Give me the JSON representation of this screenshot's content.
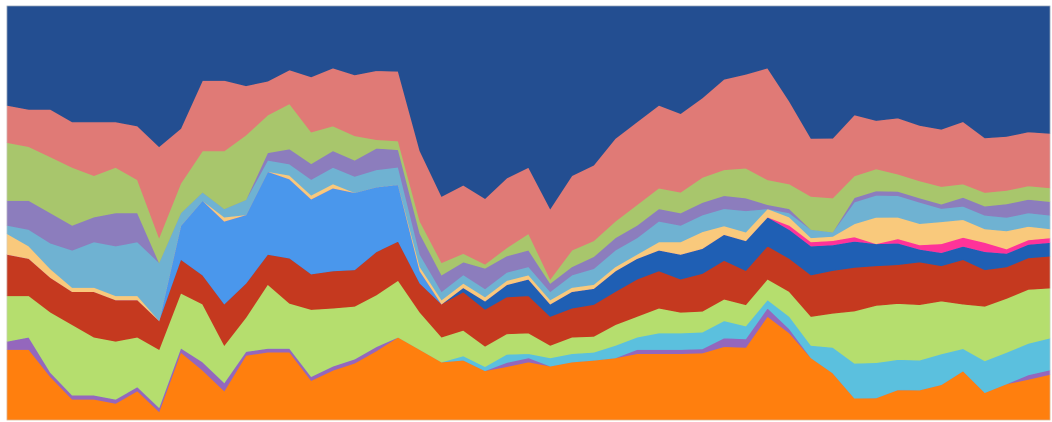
{
  "chart_data": {
    "type": "area",
    "stacked": true,
    "normalized": true,
    "ylim": [
      0,
      1
    ],
    "grid": false,
    "legend": "none",
    "n_points": 49,
    "series": [
      {
        "color": "#ff7f0e",
        "values": [
          0.17,
          0.17,
          0.1,
          0.05,
          0.05,
          0.04,
          0.07,
          0.02,
          0.16,
          0.12,
          0.07,
          0.17,
          0.18,
          0.18,
          0.1,
          0.12,
          0.14,
          0.16,
          0.19,
          0.17,
          0.14,
          0.14,
          0.12,
          0.13,
          0.14,
          0.13,
          0.14,
          0.15,
          0.15,
          0.16,
          0.16,
          0.16,
          0.16,
          0.17,
          0.17,
          0.25,
          0.21,
          0.15,
          0.11,
          0.05,
          0.05,
          0.07,
          0.07,
          0.08,
          0.11,
          0.06,
          0.08,
          0.09,
          0.1
        ]
      },
      {
        "color": "#9467bd",
        "values": [
          0.02,
          0.03,
          0.01,
          0.01,
          0.01,
          0.01,
          0.01,
          0.01,
          0.01,
          0.02,
          0.02,
          0.01,
          0.01,
          0.01,
          0.01,
          0.01,
          0.01,
          0.01,
          0.0,
          0.0,
          0.0,
          0.0,
          0.0,
          0.01,
          0.01,
          0.0,
          0.0,
          0.0,
          0.0,
          0.01,
          0.01,
          0.01,
          0.01,
          0.02,
          0.02,
          0.02,
          0.01,
          0.0,
          0.0,
          0.0,
          0.0,
          0.0,
          0.0,
          0.0,
          0.0,
          0.0,
          0.0,
          0.01,
          0.01
        ]
      },
      {
        "color": "#5bc0de",
        "values": [
          0.0,
          0.0,
          0.0,
          0.0,
          0.0,
          0.0,
          0.0,
          0.0,
          0.0,
          0.0,
          0.0,
          0.0,
          0.0,
          0.0,
          0.0,
          0.0,
          0.0,
          0.0,
          0.0,
          0.0,
          0.0,
          0.01,
          0.01,
          0.02,
          0.01,
          0.02,
          0.02,
          0.02,
          0.03,
          0.03,
          0.04,
          0.04,
          0.04,
          0.04,
          0.03,
          0.02,
          0.03,
          0.03,
          0.06,
          0.08,
          0.08,
          0.07,
          0.07,
          0.07,
          0.05,
          0.07,
          0.07,
          0.07,
          0.07
        ]
      },
      {
        "color": "#b5de6e",
        "values": [
          0.11,
          0.1,
          0.14,
          0.17,
          0.14,
          0.14,
          0.12,
          0.14,
          0.13,
          0.14,
          0.09,
          0.09,
          0.17,
          0.12,
          0.17,
          0.14,
          0.13,
          0.12,
          0.13,
          0.09,
          0.06,
          0.06,
          0.05,
          0.05,
          0.05,
          0.03,
          0.04,
          0.04,
          0.05,
          0.05,
          0.06,
          0.05,
          0.05,
          0.05,
          0.05,
          0.05,
          0.06,
          0.07,
          0.08,
          0.12,
          0.13,
          0.13,
          0.13,
          0.12,
          0.1,
          0.12,
          0.12,
          0.12,
          0.11
        ]
      },
      {
        "color": "#c5391f",
        "values": [
          0.1,
          0.09,
          0.08,
          0.08,
          0.11,
          0.1,
          0.09,
          0.07,
          0.08,
          0.07,
          0.1,
          0.09,
          0.08,
          0.12,
          0.09,
          0.09,
          0.09,
          0.1,
          0.09,
          0.07,
          0.08,
          0.09,
          0.09,
          0.09,
          0.09,
          0.07,
          0.07,
          0.08,
          0.08,
          0.09,
          0.09,
          0.08,
          0.09,
          0.09,
          0.08,
          0.08,
          0.08,
          0.1,
          0.1,
          0.1,
          0.09,
          0.09,
          0.1,
          0.08,
          0.1,
          0.08,
          0.07,
          0.07,
          0.07
        ]
      },
      {
        "color": "#1f5fb4",
        "values": [
          0.0,
          0.0,
          0.0,
          0.0,
          0.0,
          0.0,
          0.0,
          0.0,
          0.0,
          0.0,
          0.0,
          0.0,
          0.0,
          0.0,
          0.0,
          0.0,
          0.0,
          0.0,
          0.0,
          0.0,
          0.0,
          0.01,
          0.02,
          0.03,
          0.04,
          0.03,
          0.04,
          0.04,
          0.05,
          0.05,
          0.05,
          0.06,
          0.06,
          0.06,
          0.07,
          0.07,
          0.07,
          0.07,
          0.06,
          0.06,
          0.05,
          0.05,
          0.03,
          0.03,
          0.03,
          0.04,
          0.03,
          0.03,
          0.03
        ]
      },
      {
        "color": "#4a97ec",
        "values": [
          0.0,
          0.0,
          0.0,
          0.0,
          0.0,
          0.0,
          0.0,
          0.0,
          0.08,
          0.18,
          0.2,
          0.18,
          0.22,
          0.21,
          0.19,
          0.2,
          0.19,
          0.15,
          0.13,
          0.03,
          0.0,
          0.0,
          0.0,
          0.0,
          0.0,
          0.0,
          0.0,
          0.0,
          0.0,
          0.0,
          0.0,
          0.0,
          0.0,
          0.0,
          0.0,
          0.0,
          0.0,
          0.0,
          0.0,
          0.0,
          0.0,
          0.0,
          0.0,
          0.0,
          0.0,
          0.0,
          0.0,
          0.0,
          0.0
        ]
      },
      {
        "color": "#ff3399",
        "values": [
          0.0,
          0.0,
          0.0,
          0.0,
          0.0,
          0.0,
          0.0,
          0.0,
          0.0,
          0.0,
          0.0,
          0.0,
          0.0,
          0.0,
          0.0,
          0.0,
          0.0,
          0.0,
          0.0,
          0.0,
          0.0,
          0.0,
          0.0,
          0.0,
          0.0,
          0.0,
          0.0,
          0.0,
          0.0,
          0.0,
          0.0,
          0.0,
          0.0,
          0.0,
          0.0,
          0.0,
          0.01,
          0.01,
          0.01,
          0.01,
          0.0,
          0.01,
          0.01,
          0.02,
          0.02,
          0.02,
          0.01,
          0.01,
          0.01
        ]
      },
      {
        "color": "#f9c97c",
        "values": [
          0.05,
          0.03,
          0.02,
          0.01,
          0.01,
          0.01,
          0.01,
          0.0,
          0.0,
          0.0,
          0.01,
          0.0,
          0.0,
          0.01,
          0.01,
          0.01,
          0.0,
          0.0,
          0.0,
          0.01,
          0.01,
          0.01,
          0.01,
          0.01,
          0.01,
          0.01,
          0.01,
          0.01,
          0.01,
          0.01,
          0.02,
          0.03,
          0.04,
          0.02,
          0.02,
          0.02,
          0.02,
          0.01,
          0.01,
          0.03,
          0.06,
          0.05,
          0.05,
          0.05,
          0.04,
          0.03,
          0.04,
          0.03,
          0.02
        ]
      },
      {
        "color": "#6fb2d2",
        "values": [
          0.02,
          0.04,
          0.06,
          0.09,
          0.11,
          0.12,
          0.13,
          0.14,
          0.03,
          0.02,
          0.02,
          0.04,
          0.03,
          0.03,
          0.04,
          0.04,
          0.04,
          0.04,
          0.04,
          0.03,
          0.02,
          0.02,
          0.02,
          0.02,
          0.02,
          0.02,
          0.03,
          0.04,
          0.04,
          0.04,
          0.05,
          0.04,
          0.04,
          0.04,
          0.05,
          0.0,
          0.01,
          0.02,
          0.01,
          0.05,
          0.05,
          0.05,
          0.05,
          0.03,
          0.03,
          0.03,
          0.03,
          0.03,
          0.03
        ]
      },
      {
        "color": "#8c7dbd",
        "values": [
          0.06,
          0.07,
          0.07,
          0.06,
          0.06,
          0.08,
          0.07,
          0.0,
          0.0,
          0.0,
          0.0,
          0.0,
          0.02,
          0.04,
          0.04,
          0.04,
          0.04,
          0.05,
          0.04,
          0.05,
          0.04,
          0.03,
          0.05,
          0.04,
          0.04,
          0.02,
          0.02,
          0.03,
          0.03,
          0.03,
          0.03,
          0.03,
          0.03,
          0.03,
          0.03,
          0.01,
          0.01,
          0.0,
          0.0,
          0.01,
          0.01,
          0.01,
          0.01,
          0.01,
          0.02,
          0.02,
          0.03,
          0.03,
          0.03
        ]
      },
      {
        "color": "#a8c66c",
        "values": [
          0.14,
          0.13,
          0.13,
          0.14,
          0.1,
          0.11,
          0.08,
          0.06,
          0.07,
          0.1,
          0.14,
          0.17,
          0.1,
          0.12,
          0.08,
          0.06,
          0.06,
          0.02,
          0.02,
          0.03,
          0.03,
          0.02,
          0.01,
          0.02,
          0.04,
          0.01,
          0.04,
          0.04,
          0.04,
          0.05,
          0.05,
          0.05,
          0.06,
          0.06,
          0.07,
          0.06,
          0.06,
          0.08,
          0.08,
          0.05,
          0.05,
          0.04,
          0.04,
          0.04,
          0.03,
          0.03,
          0.03,
          0.03,
          0.03
        ]
      },
      {
        "color": "#e07a76",
        "values": [
          0.09,
          0.09,
          0.11,
          0.11,
          0.13,
          0.11,
          0.13,
          0.22,
          0.13,
          0.17,
          0.17,
          0.13,
          0.09,
          0.09,
          0.14,
          0.14,
          0.15,
          0.16,
          0.16,
          0.17,
          0.16,
          0.16,
          0.16,
          0.17,
          0.16,
          0.17,
          0.18,
          0.19,
          0.2,
          0.2,
          0.2,
          0.19,
          0.19,
          0.21,
          0.22,
          0.27,
          0.2,
          0.14,
          0.14,
          0.14,
          0.11,
          0.13,
          0.13,
          0.13,
          0.14,
          0.12,
          0.12,
          0.12,
          0.12
        ]
      },
      {
        "color": "#234e91",
        "values": [
          0.24,
          0.25,
          0.24,
          0.28,
          0.28,
          0.28,
          0.29,
          0.34,
          0.29,
          0.18,
          0.18,
          0.21,
          0.2,
          0.17,
          0.18,
          0.15,
          0.17,
          0.15,
          0.15,
          0.35,
          0.46,
          0.42,
          0.47,
          0.42,
          0.39,
          0.49,
          0.41,
          0.4,
          0.32,
          0.28,
          0.24,
          0.26,
          0.22,
          0.17,
          0.16,
          0.15,
          0.23,
          0.32,
          0.31,
          0.25,
          0.26,
          0.26,
          0.28,
          0.28,
          0.26,
          0.29,
          0.29,
          0.28,
          0.28
        ]
      }
    ]
  }
}
